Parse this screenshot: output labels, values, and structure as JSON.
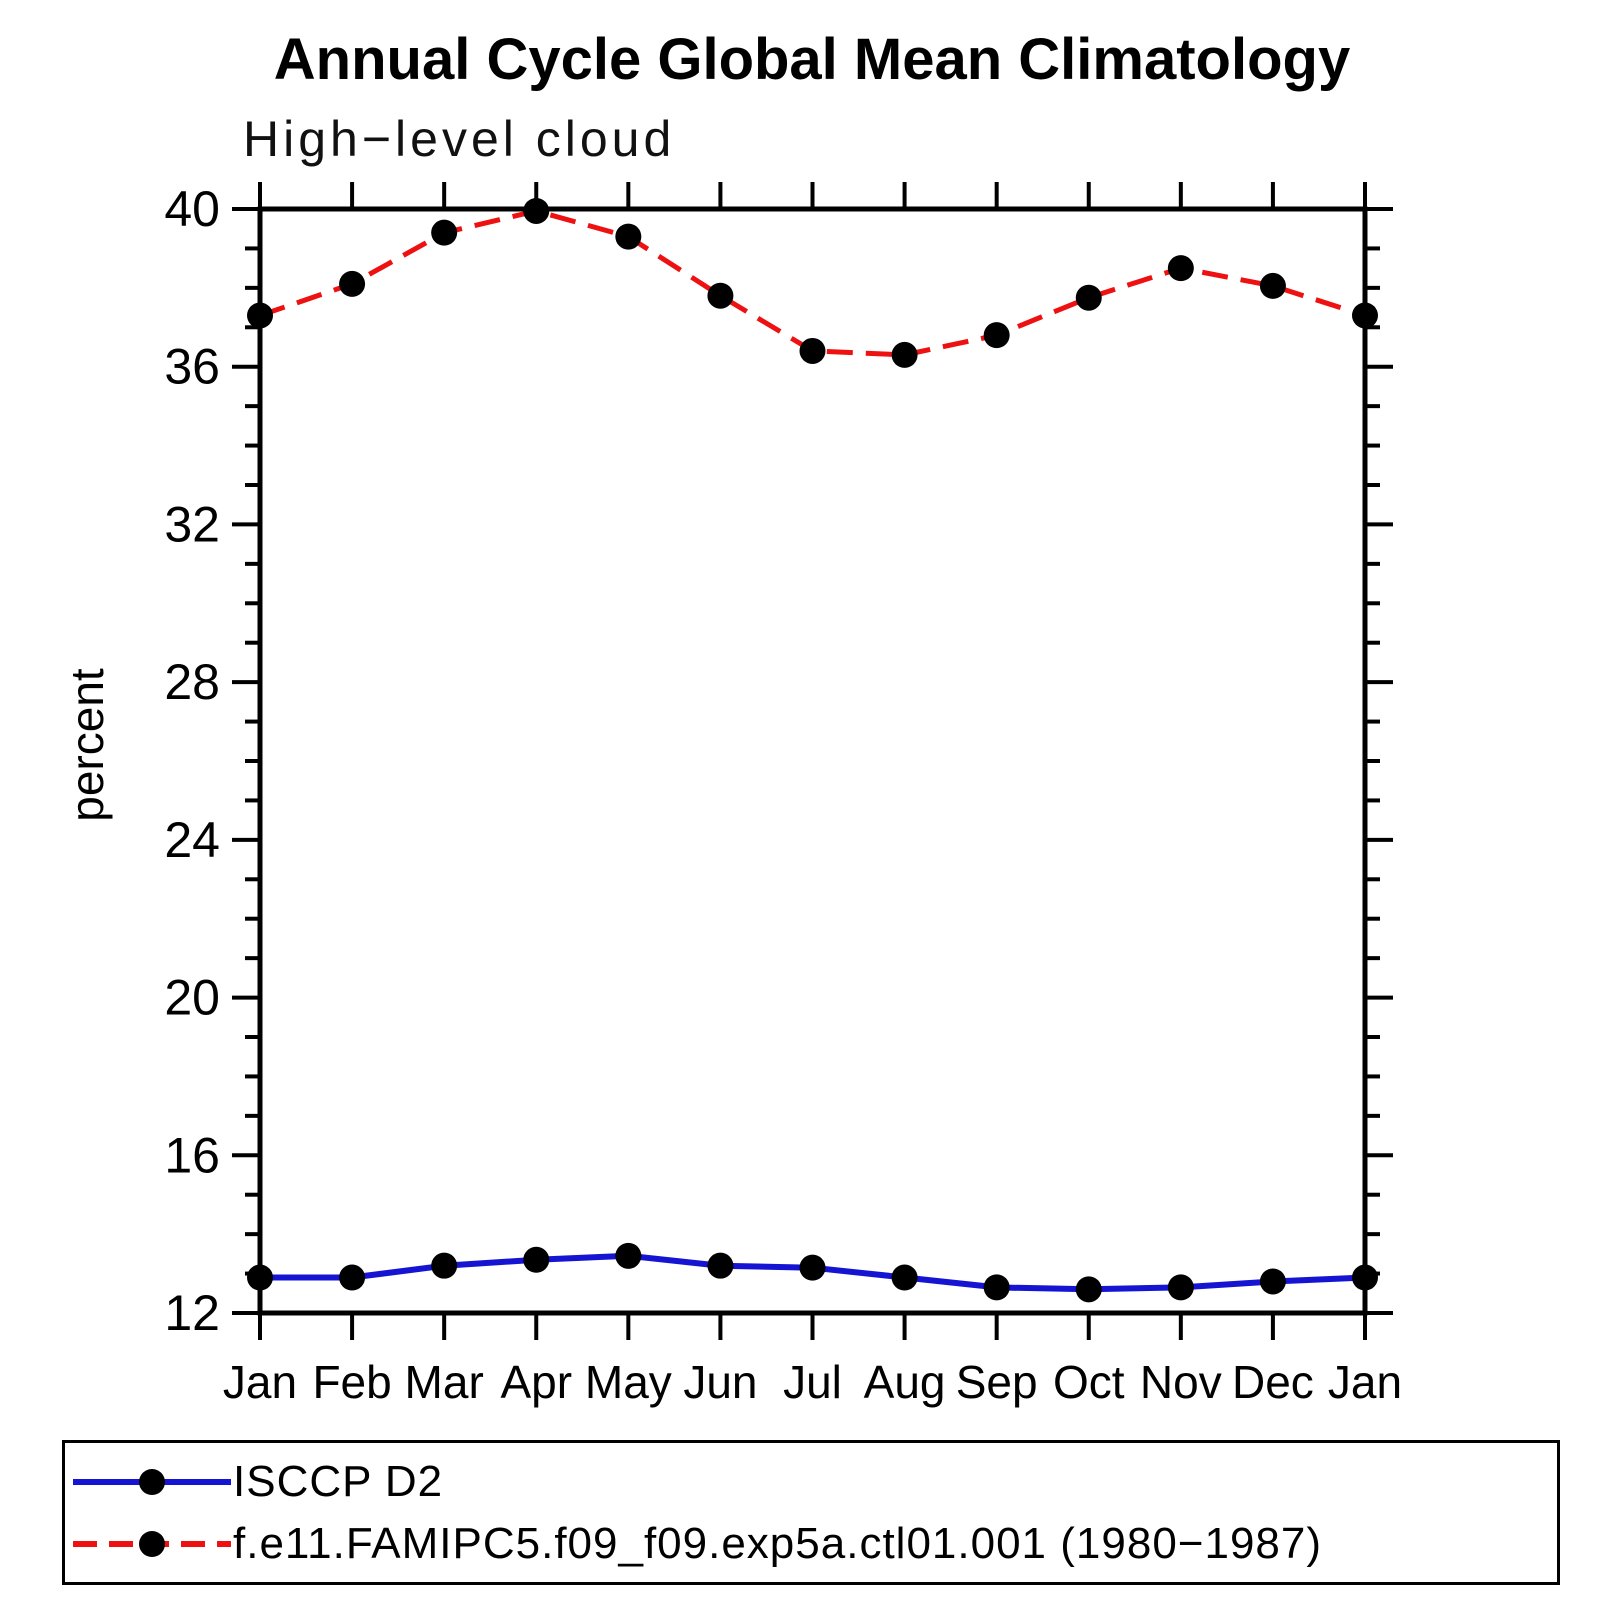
{
  "page": {
    "title": "Annual Cycle Global Mean Climatology",
    "subtitle": "High−level cloud"
  },
  "colors": {
    "axis": "#000000",
    "marker": "#000000",
    "isccp_line": "#1414d2",
    "model_line": "#ee1111",
    "background": "#ffffff"
  },
  "chart_data": {
    "type": "line",
    "title": "Annual Cycle Global Mean Climatology",
    "subtitle": "High−level cloud",
    "xlabel": "",
    "ylabel": "percent",
    "ylim": [
      12,
      40
    ],
    "y_major_tick_step": 4,
    "y_minor_tick_step": 1,
    "y_major_ticks": [
      12,
      16,
      20,
      24,
      28,
      32,
      36,
      40
    ],
    "grid": false,
    "legend_position": "bottom",
    "categories": [
      "Jan",
      "Feb",
      "Mar",
      "Apr",
      "May",
      "Jun",
      "Jul",
      "Aug",
      "Sep",
      "Oct",
      "Nov",
      "Dec",
      "Jan"
    ],
    "series": [
      {
        "name": "ISCCP D2",
        "color": "#1414d2",
        "line_style": "solid",
        "marker": "filled-circle",
        "marker_color": "#000000",
        "values": [
          12.9,
          12.9,
          13.2,
          13.35,
          13.45,
          13.2,
          13.15,
          12.9,
          12.65,
          12.6,
          12.65,
          12.8,
          12.9
        ]
      },
      {
        "name": "f.e11.FAMIPC5.f09_f09.exp5a.ctl01.001 (1980−1987)",
        "color": "#ee1111",
        "line_style": "dashed",
        "marker": "filled-circle",
        "marker_color": "#000000",
        "values": [
          37.3,
          38.1,
          39.4,
          39.95,
          39.3,
          37.8,
          36.4,
          36.3,
          36.8,
          37.75,
          38.5,
          38.05,
          37.3
        ]
      }
    ]
  }
}
